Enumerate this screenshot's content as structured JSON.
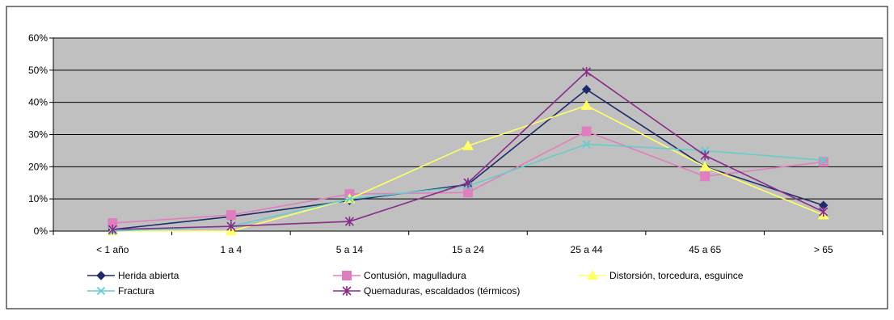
{
  "chart_data": {
    "type": "line",
    "title": "",
    "xlabel": "",
    "ylabel": "",
    "categories": [
      "< 1 año",
      "1 a 4",
      "5 a 14",
      "15 a 24",
      "25 a 44",
      "45 a 65",
      "> 65"
    ],
    "ylim": [
      0,
      60
    ],
    "yticks": [
      0,
      10,
      20,
      30,
      40,
      50,
      60
    ],
    "ytick_labels": [
      "0%",
      "10%",
      "20%",
      "30%",
      "40%",
      "50%",
      "60%"
    ],
    "grid": true,
    "plot_background": "#c0c0c0",
    "legend_position": "bottom",
    "series": [
      {
        "name": "Herida abierta",
        "color": "#1f2a6b",
        "marker": "diamond",
        "values": [
          0.5,
          4.5,
          9.5,
          14.5,
          44,
          20,
          8
        ]
      },
      {
        "name": "Contusión, magulladura",
        "color": "#e07fbf",
        "marker": "square",
        "values": [
          2.5,
          5,
          11.5,
          12,
          31,
          17,
          21.5
        ]
      },
      {
        "name": "Distorsión, torcedura, esguince",
        "color": "#ffff66",
        "marker": "triangle",
        "values": [
          0,
          0,
          10,
          26.5,
          39,
          20,
          5
        ]
      },
      {
        "name": "Fractura",
        "color": "#66cccc",
        "marker": "x",
        "values": [
          0,
          1.5,
          10,
          14,
          27,
          25,
          22
        ]
      },
      {
        "name": "Quemaduras, escaldados (térmicos)",
        "color": "#8a2b8a",
        "marker": "star",
        "values": [
          0.5,
          1.5,
          3,
          15,
          49.5,
          23.5,
          6
        ]
      }
    ]
  }
}
